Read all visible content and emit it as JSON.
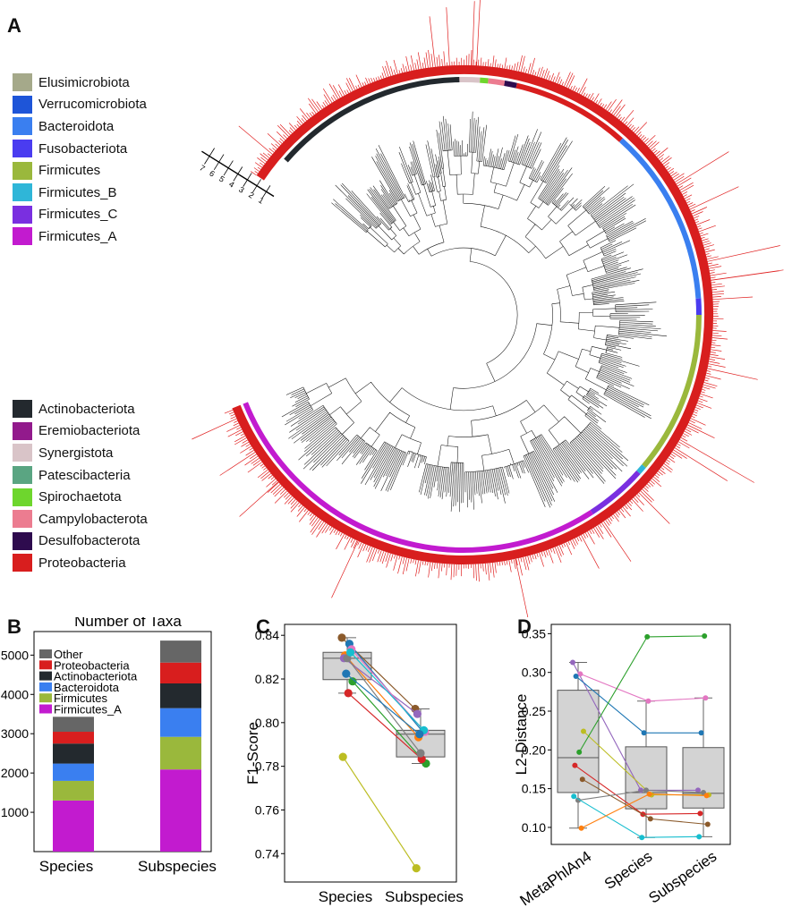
{
  "panels": {
    "a": "A",
    "b": "B",
    "c": "C",
    "d": "D"
  },
  "tree_scale_ticks": [
    "7",
    "6",
    "5",
    "4",
    "3",
    "2",
    "1"
  ],
  "legend_top": [
    {
      "label": "Elusimicrobiota",
      "color": "#a5a98a"
    },
    {
      "label": "Verrucomicrobiota",
      "color": "#1e55d8"
    },
    {
      "label": "Bacteroidota",
      "color": "#3a7ff0"
    },
    {
      "label": "Fusobacteriota",
      "color": "#4a3cf0"
    },
    {
      "label": "Firmicutes",
      "color": "#9ab83c"
    },
    {
      "label": "Firmicutes_B",
      "color": "#2fb6d8"
    },
    {
      "label": "Firmicutes_C",
      "color": "#7a2fe0"
    },
    {
      "label": "Firmicutes_A",
      "color": "#c21bcf"
    }
  ],
  "legend_bottom": [
    {
      "label": "Actinobacteriota",
      "color": "#23292e"
    },
    {
      "label": "Eremiobacteriota",
      "color": "#921a8c"
    },
    {
      "label": "Synergistota",
      "color": "#d9c4c8"
    },
    {
      "label": "Patescibacteria",
      "color": "#5aa582"
    },
    {
      "label": "Spirochaetota",
      "color": "#6ed62d"
    },
    {
      "label": "Campylobacterota",
      "color": "#ec7c90"
    },
    {
      "label": "Desulfobacterota",
      "color": "#2e0b4e"
    },
    {
      "label": "Proteobacteria",
      "color": "#d81e1e"
    }
  ],
  "chart_data": [
    {
      "type": "bar",
      "stacked": true,
      "title": "Number of Taxa",
      "categories": [
        "Species",
        "Subspecies"
      ],
      "ylim": [
        0,
        5600
      ],
      "yticks": [
        1000,
        2000,
        3000,
        4000,
        5000
      ],
      "legend": "top-left",
      "series": [
        {
          "name": "Firmicutes_A",
          "color": "#c21bcf",
          "values": [
            1300,
            2090
          ]
        },
        {
          "name": "Firmicutes",
          "color": "#9ab83c",
          "values": [
            500,
            830
          ]
        },
        {
          "name": "Bacteroidota",
          "color": "#3a7ff0",
          "values": [
            440,
            730
          ]
        },
        {
          "name": "Actinobacteriota",
          "color": "#23292e",
          "values": [
            510,
            630
          ]
        },
        {
          "name": "Proteobacteria",
          "color": "#d81e1e",
          "values": [
            300,
            530
          ]
        },
        {
          "name": "Other",
          "color": "#666666",
          "values": [
            380,
            560
          ]
        }
      ]
    },
    {
      "type": "box-paired",
      "ylabel": "F1-Score",
      "categories": [
        "Species",
        "Subspecies"
      ],
      "ylim": [
        0.727,
        0.845
      ],
      "yticks": [
        0.74,
        0.76,
        0.78,
        0.8,
        0.82,
        0.84
      ],
      "boxes": [
        {
          "q1": 0.8197,
          "median": 0.8295,
          "q3": 0.8322,
          "min": 0.8135,
          "max": 0.8389
        },
        {
          "q1": 0.7843,
          "median": 0.7947,
          "q3": 0.7965,
          "min": 0.7813,
          "max": 0.8063
        }
      ],
      "pairs": [
        {
          "color": "#8b5a2b",
          "values": [
            0.8389,
            0.8063
          ]
        },
        {
          "color": "#1f77b4",
          "values": [
            0.8361,
            0.7958
          ]
        },
        {
          "color": "#ff7f0e",
          "values": [
            0.8308,
            0.7933
          ]
        },
        {
          "color": "#2ca02c",
          "values": [
            0.8189,
            0.7813
          ]
        },
        {
          "color": "#d62728",
          "values": [
            0.8135,
            0.7833
          ]
        },
        {
          "color": "#9467bd",
          "values": [
            0.8295,
            0.804
          ]
        },
        {
          "color": "#e377c2",
          "values": [
            0.8336,
            0.7958
          ]
        },
        {
          "color": "#7f7f7f",
          "values": [
            0.8295,
            0.786
          ]
        },
        {
          "color": "#bcbd22",
          "values": [
            0.7843,
            0.7333
          ]
        },
        {
          "color": "#17becf",
          "values": [
            0.8322,
            0.7965
          ]
        },
        {
          "color": "#1f77b4",
          "values": [
            0.8224,
            0.7947
          ]
        }
      ]
    },
    {
      "type": "box-paired",
      "ylabel": "L2-Distance",
      "categories": [
        "MetaPhlAn4",
        "Species",
        "Subspecies"
      ],
      "ylim": [
        0.078,
        0.362
      ],
      "yticks": [
        0.1,
        0.15,
        0.2,
        0.25,
        0.3,
        0.35
      ],
      "boxes": [
        {
          "q1": 0.145,
          "median": 0.19,
          "q3": 0.277,
          "min": 0.099,
          "max": 0.313
        },
        {
          "q1": 0.124,
          "median": 0.145,
          "q3": 0.204,
          "min": 0.087,
          "max": 0.263
        },
        {
          "q1": 0.125,
          "median": 0.144,
          "q3": 0.203,
          "min": 0.088,
          "max": 0.267
        }
      ],
      "pairs": [
        {
          "color": "#9467bd",
          "values": [
            0.313,
            0.148,
            0.148
          ]
        },
        {
          "color": "#e377c2",
          "values": [
            0.298,
            0.263,
            0.267
          ]
        },
        {
          "color": "#1f77b4",
          "values": [
            0.295,
            0.222,
            0.222
          ]
        },
        {
          "color": "#bcbd22",
          "values": [
            0.224,
            0.142,
            0.142
          ]
        },
        {
          "color": "#2ca02c",
          "values": [
            0.197,
            0.346,
            0.347
          ]
        },
        {
          "color": "#d62728",
          "values": [
            0.18,
            0.117,
            0.118
          ]
        },
        {
          "color": "#8b5a2b",
          "values": [
            0.162,
            0.111,
            0.104
          ]
        },
        {
          "color": "#7f7f7f",
          "values": [
            0.135,
            0.148,
            0.145
          ]
        },
        {
          "color": "#17becf",
          "values": [
            0.14,
            0.087,
            0.088
          ]
        },
        {
          "color": "#ff7f0e",
          "values": [
            0.099,
            0.143,
            0.141
          ]
        }
      ]
    }
  ]
}
